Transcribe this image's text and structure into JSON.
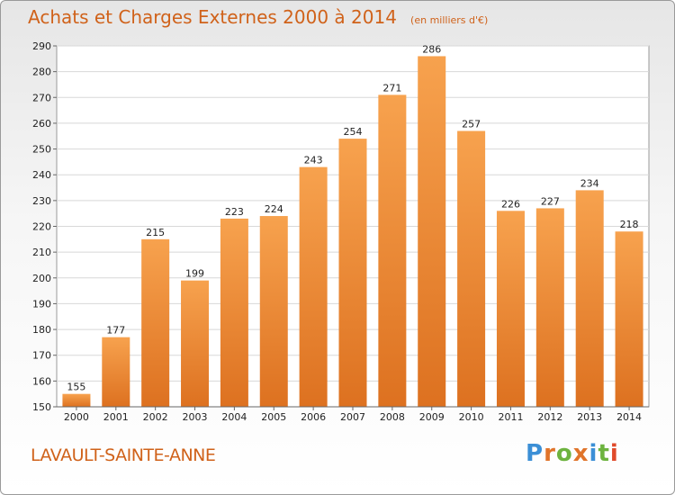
{
  "header": {
    "title": "Achats et Charges Externes 2000 à 2014",
    "unit": "(en milliers d'€)"
  },
  "footer": {
    "commune": "LAVAULT-SAINTE-ANNE",
    "logo_text": "Proxiti"
  },
  "colors": {
    "accent": "#d0621a",
    "bar_top": "#f7a24e",
    "bar_bottom": "#dd7120",
    "logo_letters": [
      "#3b8fd6",
      "#e0742a",
      "#6db33f",
      "#e0742a",
      "#3b8fd6",
      "#6db33f",
      "#e04a2a"
    ]
  },
  "chart_data": {
    "type": "bar",
    "categories": [
      "2000",
      "2001",
      "2002",
      "2003",
      "2004",
      "2005",
      "2006",
      "2007",
      "2008",
      "2009",
      "2010",
      "2011",
      "2012",
      "2013",
      "2014"
    ],
    "values": [
      155,
      177,
      215,
      199,
      223,
      224,
      243,
      254,
      271,
      286,
      257,
      226,
      227,
      234,
      218
    ],
    "title": "Achats et Charges Externes 2000 à 2014",
    "ylim": [
      150,
      290
    ],
    "yticks": [
      150,
      160,
      170,
      180,
      190,
      200,
      210,
      220,
      230,
      240,
      250,
      260,
      270,
      280,
      290
    ],
    "grid": true,
    "data_labels": true
  }
}
